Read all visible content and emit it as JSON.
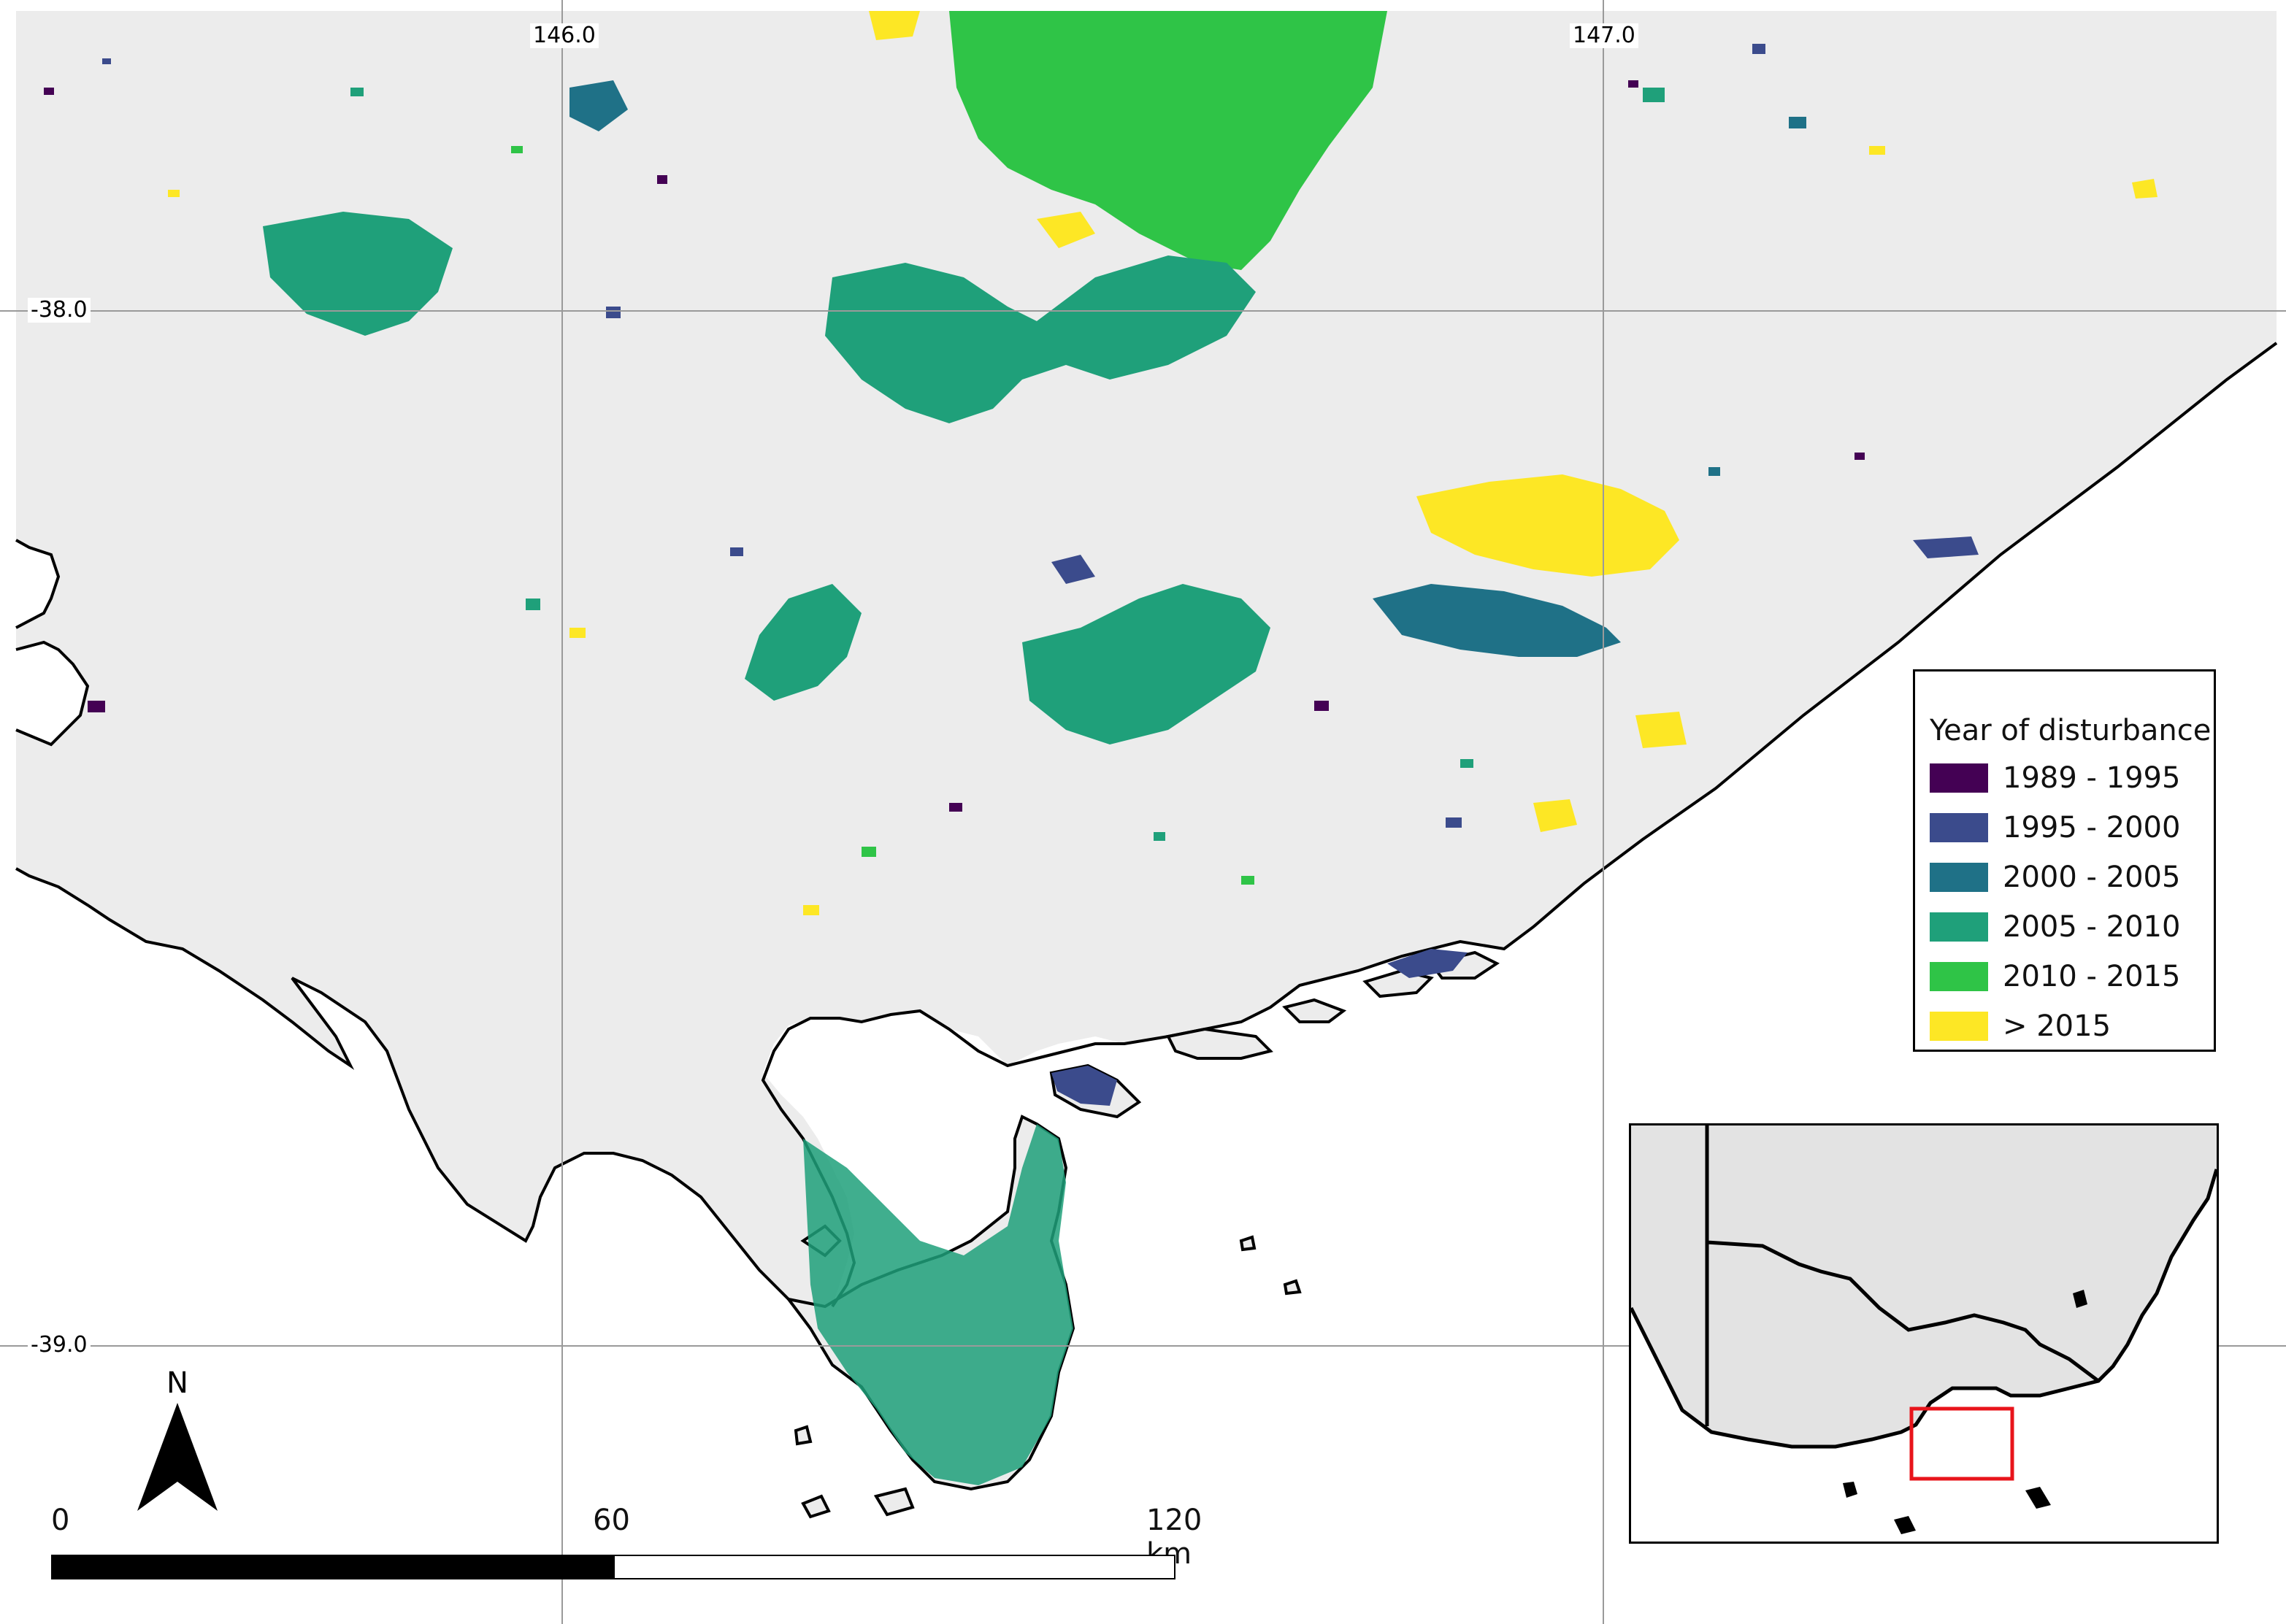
{
  "map": {
    "grid_labels": {
      "lon_146": "146.0",
      "lon_147": "147.0",
      "lat_38": "-38.0",
      "lat_39": "-39.0"
    },
    "background_color": "#ececec",
    "sea_color": "#ffffff"
  },
  "legend": {
    "title": "Year of disturbance",
    "items": [
      {
        "label": "1989 - 1995",
        "color": "#440154"
      },
      {
        "label": "1995 - 2000",
        "color": "#3b4b8c"
      },
      {
        "label": "2000 - 2005",
        "color": "#1f7187"
      },
      {
        "label": "2005 - 2010",
        "color": "#1fa07a"
      },
      {
        "label": "2010 - 2015",
        "color": "#2fc447"
      },
      {
        "label": "> 2015",
        "color": "#fde725"
      }
    ]
  },
  "scalebar": {
    "labels": [
      "0",
      "60",
      "120 km"
    ]
  },
  "north_arrow": {
    "label": "N"
  },
  "inset": {
    "highlight_color": "#e8141b",
    "land_color": "#e3e3e3"
  }
}
